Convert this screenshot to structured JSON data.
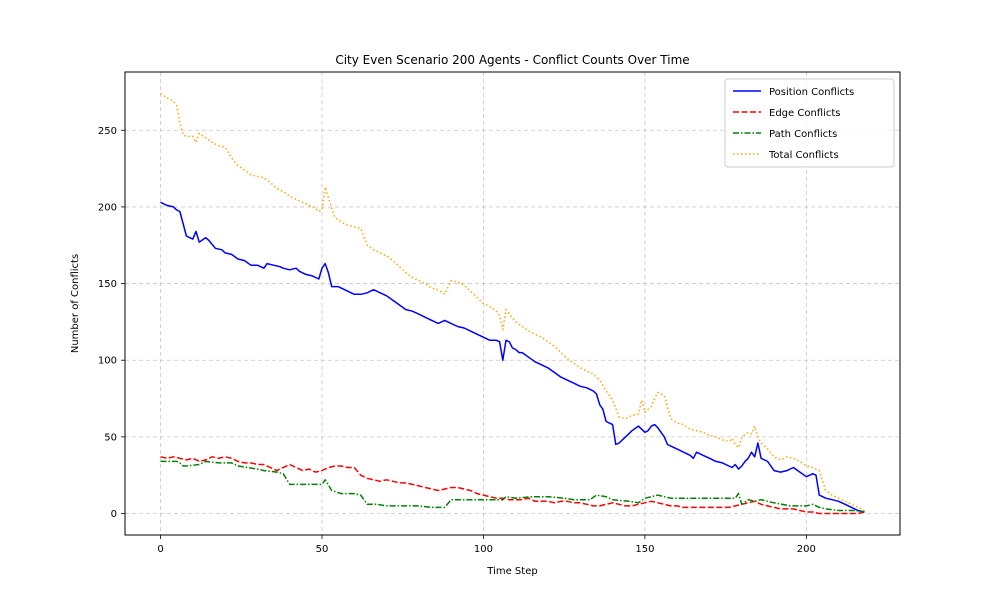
{
  "chart_data": {
    "type": "line",
    "title": "City Even Scenario 200 Agents - Conflict Counts Over Time",
    "xlabel": "Time Step",
    "ylabel": "Number of Conflicts",
    "xlim": [
      -11,
      229
    ],
    "ylim": [
      -14,
      288
    ],
    "xticks": [
      0,
      50,
      100,
      150,
      200
    ],
    "yticks": [
      0,
      50,
      100,
      150,
      200,
      250
    ],
    "grid": true,
    "legend_position": "top-right",
    "series": [
      {
        "name": "Position Conflicts",
        "color": "#0000ff",
        "style": "solid",
        "x": [
          0,
          2,
          4,
          5,
          6,
          8,
          9,
          10,
          11,
          12,
          14,
          15,
          17,
          19,
          20,
          22,
          24,
          26,
          28,
          30,
          32,
          33,
          35,
          37,
          38,
          40,
          42,
          43,
          45,
          47,
          49,
          50,
          51,
          52,
          53,
          55,
          57,
          60,
          62,
          64,
          66,
          68,
          70,
          72,
          74,
          76,
          78,
          80,
          82,
          84,
          86,
          88,
          90,
          92,
          94,
          96,
          98,
          100,
          102,
          104,
          105,
          106,
          107,
          108,
          109,
          110,
          111,
          112,
          114,
          116,
          118,
          120,
          122,
          124,
          126,
          128,
          130,
          132,
          134,
          135,
          136,
          137,
          138,
          140,
          141,
          142,
          143,
          144,
          145,
          146,
          148,
          150,
          151,
          152,
          153,
          154,
          156,
          157,
          158,
          160,
          162,
          164,
          165,
          166,
          168,
          170,
          172,
          174,
          176,
          177,
          178,
          179,
          180,
          181,
          182,
          183,
          184,
          185,
          186,
          188,
          190,
          192,
          194,
          196,
          198,
          200,
          202,
          203,
          204,
          206,
          208,
          210,
          212,
          214,
          216,
          218
        ],
        "values": [
          203,
          201,
          200,
          198,
          197,
          181,
          180,
          179,
          184,
          177,
          180,
          178,
          173,
          172,
          170,
          169,
          166,
          165,
          162,
          162,
          160,
          163,
          162,
          161,
          160,
          159,
          160,
          158,
          156,
          155,
          153,
          160,
          163,
          157,
          148,
          148,
          146,
          143,
          143,
          144,
          146,
          144,
          142,
          139,
          136,
          133,
          132,
          130,
          128,
          126,
          124,
          126,
          124,
          122,
          121,
          119,
          117,
          115,
          113,
          113,
          112,
          100,
          113,
          112,
          108,
          107,
          105,
          105,
          102,
          99,
          97,
          95,
          92,
          89,
          87,
          85,
          83,
          82,
          80,
          78,
          71,
          68,
          60,
          58,
          45,
          46,
          48,
          50,
          52,
          54,
          57,
          53,
          54,
          57,
          58,
          56,
          50,
          45,
          44,
          42,
          40,
          38,
          36,
          40,
          38,
          36,
          34,
          33,
          31,
          30,
          32,
          29,
          31,
          34,
          36,
          40,
          37,
          46,
          36,
          34,
          28,
          27,
          28,
          30,
          27,
          24,
          26,
          25,
          12,
          10,
          9,
          8,
          6,
          4,
          2,
          1
        ]
      },
      {
        "name": "Edge Conflicts",
        "color": "#ff0000",
        "style": "dashed",
        "x": [
          0,
          2,
          4,
          6,
          8,
          10,
          12,
          14,
          16,
          18,
          20,
          22,
          24,
          26,
          28,
          30,
          32,
          34,
          36,
          38,
          40,
          42,
          44,
          46,
          48,
          50,
          52,
          54,
          56,
          58,
          60,
          62,
          64,
          66,
          68,
          70,
          72,
          74,
          76,
          78,
          80,
          82,
          84,
          86,
          88,
          90,
          92,
          94,
          96,
          98,
          100,
          102,
          104,
          106,
          108,
          110,
          112,
          114,
          116,
          118,
          120,
          122,
          124,
          126,
          128,
          130,
          132,
          134,
          136,
          138,
          140,
          142,
          144,
          146,
          148,
          150,
          152,
          154,
          156,
          158,
          160,
          162,
          164,
          166,
          168,
          170,
          172,
          174,
          176,
          178,
          180,
          182,
          184,
          186,
          188,
          190,
          192,
          194,
          196,
          198,
          200,
          202,
          204,
          206,
          208,
          210,
          212,
          214,
          216,
          218
        ],
        "values": [
          37,
          36,
          37,
          36,
          35,
          36,
          34,
          35,
          37,
          36,
          37,
          36,
          34,
          33,
          33,
          32,
          32,
          30,
          28,
          30,
          32,
          30,
          28,
          29,
          27,
          28,
          30,
          31,
          31,
          30,
          30,
          25,
          23,
          22,
          21,
          22,
          21,
          20,
          20,
          19,
          18,
          17,
          16,
          15,
          16,
          17,
          17,
          16,
          15,
          13,
          12,
          11,
          10,
          10,
          9,
          9,
          9,
          10,
          8,
          8,
          8,
          7,
          8,
          8,
          7,
          7,
          6,
          5,
          5,
          6,
          7,
          6,
          5,
          5,
          6,
          7,
          8,
          7,
          6,
          5,
          5,
          4,
          4,
          4,
          4,
          4,
          4,
          4,
          4,
          5,
          6,
          7,
          8,
          6,
          5,
          4,
          3,
          3,
          3,
          2,
          1,
          1,
          0,
          0,
          0,
          0,
          0,
          0,
          0,
          1
        ]
      },
      {
        "name": "Path Conflicts",
        "color": "#008000",
        "style": "dashdot",
        "x": [
          0,
          3,
          5,
          6,
          7,
          8,
          12,
          14,
          18,
          22,
          24,
          30,
          32,
          36,
          38,
          40,
          45,
          49,
          50,
          51,
          53,
          56,
          60,
          62,
          64,
          67,
          70,
          75,
          80,
          84,
          88,
          90,
          95,
          100,
          106,
          107,
          110,
          115,
          120,
          125,
          128,
          133,
          135,
          138,
          140,
          145,
          148,
          150,
          152,
          154,
          156,
          158,
          160,
          165,
          170,
          175,
          178,
          179,
          180,
          182,
          184,
          186,
          188,
          190,
          195,
          200,
          202,
          204,
          206,
          210,
          215,
          218
        ],
        "values": [
          34,
          34,
          34,
          33,
          31,
          31,
          32,
          34,
          33,
          33,
          31,
          29,
          28,
          27,
          26,
          19,
          19,
          19,
          19,
          22,
          15,
          13,
          13,
          12,
          6,
          6,
          5,
          5,
          5,
          4,
          4,
          9,
          9,
          9,
          9,
          11,
          10,
          11,
          11,
          10,
          9,
          9,
          12,
          11,
          9,
          8,
          7,
          10,
          11,
          12,
          11,
          10,
          10,
          10,
          10,
          10,
          10,
          13,
          6,
          9,
          8,
          9,
          8,
          7,
          5,
          5,
          6,
          4,
          3,
          2,
          2,
          1
        ]
      },
      {
        "name": "Total Conflicts",
        "color": "#ffa500",
        "style": "dotted",
        "x": [
          0,
          2,
          4,
          5,
          6,
          7,
          8,
          10,
          11,
          12,
          14,
          16,
          18,
          20,
          22,
          24,
          26,
          28,
          30,
          32,
          34,
          36,
          38,
          40,
          42,
          44,
          46,
          48,
          49,
          50,
          51,
          52,
          54,
          56,
          58,
          60,
          62,
          64,
          66,
          68,
          70,
          72,
          74,
          76,
          78,
          80,
          82,
          84,
          86,
          88,
          90,
          92,
          94,
          96,
          98,
          100,
          102,
          104,
          105,
          106,
          107,
          108,
          110,
          112,
          114,
          116,
          118,
          120,
          122,
          124,
          126,
          128,
          130,
          132,
          134,
          136,
          138,
          140,
          142,
          144,
          146,
          148,
          149,
          150,
          152,
          153,
          154,
          155,
          156,
          158,
          160,
          162,
          164,
          166,
          168,
          170,
          172,
          174,
          176,
          177,
          178,
          179,
          180,
          182,
          183,
          184,
          185,
          186,
          188,
          190,
          192,
          194,
          196,
          198,
          200,
          202,
          203,
          204,
          206,
          208,
          210,
          212,
          214,
          216,
          218
        ],
        "values": [
          274,
          271,
          269,
          266,
          255,
          247,
          246,
          246,
          242,
          248,
          245,
          242,
          240,
          239,
          232,
          227,
          224,
          221,
          220,
          219,
          216,
          212,
          210,
          207,
          205,
          203,
          201,
          199,
          197,
          198,
          213,
          206,
          193,
          190,
          188,
          187,
          186,
          175,
          172,
          170,
          168,
          165,
          161,
          157,
          154,
          152,
          150,
          147,
          146,
          143,
          152,
          151,
          149,
          145,
          141,
          137,
          135,
          132,
          129,
          120,
          133,
          130,
          125,
          122,
          119,
          117,
          115,
          112,
          109,
          105,
          101,
          98,
          95,
          93,
          91,
          87,
          80,
          74,
          63,
          62,
          64,
          65,
          74,
          66,
          70,
          75,
          79,
          78,
          77,
          62,
          59,
          58,
          55,
          54,
          53,
          51,
          50,
          48,
          47,
          49,
          45,
          43,
          50,
          53,
          52,
          57,
          50,
          46,
          42,
          37,
          35,
          37,
          36,
          34,
          31,
          30,
          29,
          28,
          15,
          12,
          10,
          8,
          6,
          4,
          2
        ]
      }
    ]
  }
}
